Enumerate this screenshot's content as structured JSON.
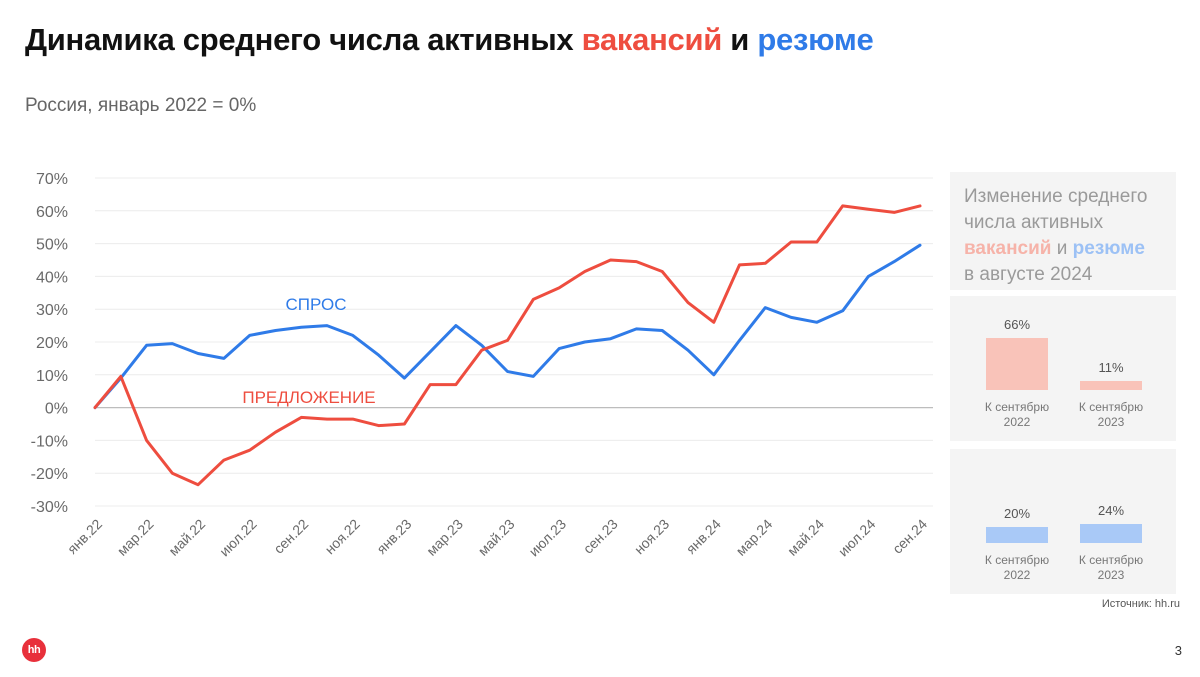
{
  "header": {
    "title_prefix": "Динамика среднего числа активных",
    "title_vacancies": "вакансий",
    "title_and": "и",
    "title_resumes": "резюме",
    "subtitle": "Россия, январь 2022 = 0%"
  },
  "chart_data": {
    "type": "line",
    "y_ticks": [
      "70%",
      "60%",
      "50%",
      "40%",
      "30%",
      "20%",
      "10%",
      "0%",
      "-10%",
      "-20%",
      "-30%"
    ],
    "ylim": [
      -30,
      70
    ],
    "x_tick_labels": [
      "янв.22",
      "мар.22",
      "май.22",
      "июл.22",
      "сен.22",
      "ноя.22",
      "янв.23",
      "мар.23",
      "май.23",
      "июл.23",
      "сен.23",
      "ноя.23",
      "янв.24",
      "мар.24",
      "май.24",
      "июл.24",
      "сен.24"
    ],
    "months": [
      "янв.22",
      "фев.22",
      "мар.22",
      "апр.22",
      "май.22",
      "июн.22",
      "июл.22",
      "авг.22",
      "сен.22",
      "окт.22",
      "ноя.22",
      "дек.22",
      "янв.23",
      "фев.23",
      "мар.23",
      "апр.23",
      "май.23",
      "июн.23",
      "июл.23",
      "авг.23",
      "сен.23",
      "окт.23",
      "ноя.23",
      "дек.23",
      "янв.24",
      "фев.24",
      "мар.24",
      "апр.24",
      "май.24",
      "июн.24",
      "июл.24",
      "авг.24",
      "сен.24"
    ],
    "series": [
      {
        "name": "СПРОС",
        "color": "#2f7be8",
        "values": [
          0,
          9,
          19,
          19.5,
          16.5,
          15,
          22,
          23.5,
          24.5,
          25,
          22,
          16,
          9,
          17,
          25,
          19,
          11,
          9.5,
          18,
          20,
          21,
          24,
          23.5,
          17.5,
          10,
          20.5,
          30.5,
          27.5,
          26,
          29.5,
          40,
          44.5,
          49.5
        ]
      },
      {
        "name": "ПРЕДЛОЖЕНИЕ",
        "color": "#ee4d3f",
        "values": [
          0,
          9.5,
          -10,
          -20,
          -23.5,
          -16,
          -13,
          -7.5,
          -3,
          -3.5,
          -3.5,
          -5.5,
          -5,
          7,
          7,
          17.5,
          20.5,
          33,
          36.5,
          41.5,
          45,
          44.5,
          41.5,
          32,
          26,
          43.5,
          44,
          50.5,
          50.5,
          61.5,
          60.5,
          59.5,
          61.5
        ]
      }
    ]
  },
  "side_panel": {
    "heading_line1": "Изменение среднего",
    "heading_line2": "числа активных",
    "heading_vacancies": "вакансий",
    "heading_and": "и",
    "heading_resumes": "резюме",
    "heading_line4": "в августе 2024",
    "vacancies_bars": [
      {
        "value_label": "66%",
        "value": 66,
        "label_line1": "К сентябрю",
        "label_line2": "2022"
      },
      {
        "value_label": "11%",
        "value": 11,
        "label_line1": "К сентябрю",
        "label_line2": "2023"
      }
    ],
    "resumes_bars": [
      {
        "value_label": "20%",
        "value": 20,
        "label_line1": "К сентябрю",
        "label_line2": "2022"
      },
      {
        "value_label": "24%",
        "value": 24,
        "label_line1": "К сентябрю",
        "label_line2": "2023"
      }
    ],
    "vacancies_color": "#f9c3b9",
    "resumes_color": "#a9c9f7"
  },
  "footer": {
    "source": "Источник: hh.ru",
    "logo": "hh",
    "page_number": "3"
  }
}
